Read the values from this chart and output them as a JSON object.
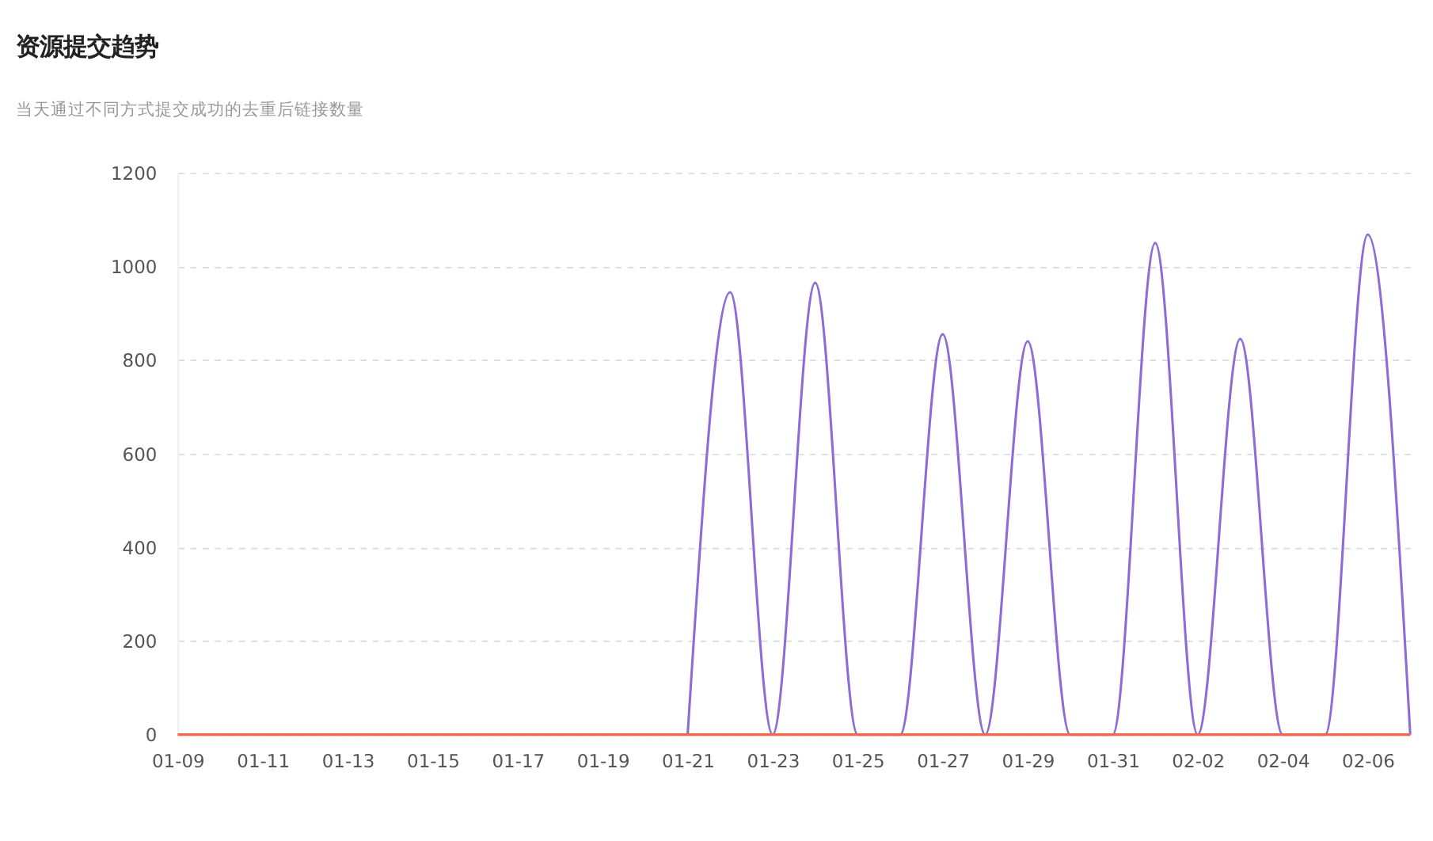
{
  "chart_data": {
    "type": "line",
    "title": "资源提交趋势",
    "subtitle": "当天通过不同方式提交成功的去重后链接数量",
    "categories": [
      "01-09",
      null,
      "01-11",
      null,
      "01-13",
      null,
      "01-15",
      null,
      "01-17",
      null,
      "01-19",
      null,
      "01-21",
      null,
      "01-23",
      null,
      "01-25",
      null,
      "01-27",
      null,
      "01-29",
      null,
      "01-31",
      null,
      "02-02",
      null,
      "02-04",
      null,
      "02-06",
      null
    ],
    "series": [
      {
        "color": "#8e6bd6",
        "values": [
          null,
          null,
          null,
          null,
          null,
          null,
          null,
          null,
          null,
          null,
          null,
          null,
          0,
          945,
          0,
          965,
          0,
          0,
          855,
          0,
          840,
          0,
          0,
          1050,
          0,
          845,
          0,
          0,
          1068,
          0
        ]
      },
      {
        "color": "#f4664a",
        "values": [
          0,
          0,
          0,
          0,
          0,
          0,
          0,
          0,
          0,
          0,
          0,
          0,
          0,
          0,
          0,
          0,
          0,
          0,
          0,
          0,
          0,
          0,
          0,
          0,
          0,
          0,
          0,
          0,
          0,
          0
        ]
      }
    ],
    "ylim": [
      0,
      1200
    ],
    "yticks": [
      0,
      200,
      400,
      600,
      800,
      1000,
      1200
    ],
    "grid": "y",
    "legend": false,
    "marker": "none",
    "line_style": "solid"
  }
}
